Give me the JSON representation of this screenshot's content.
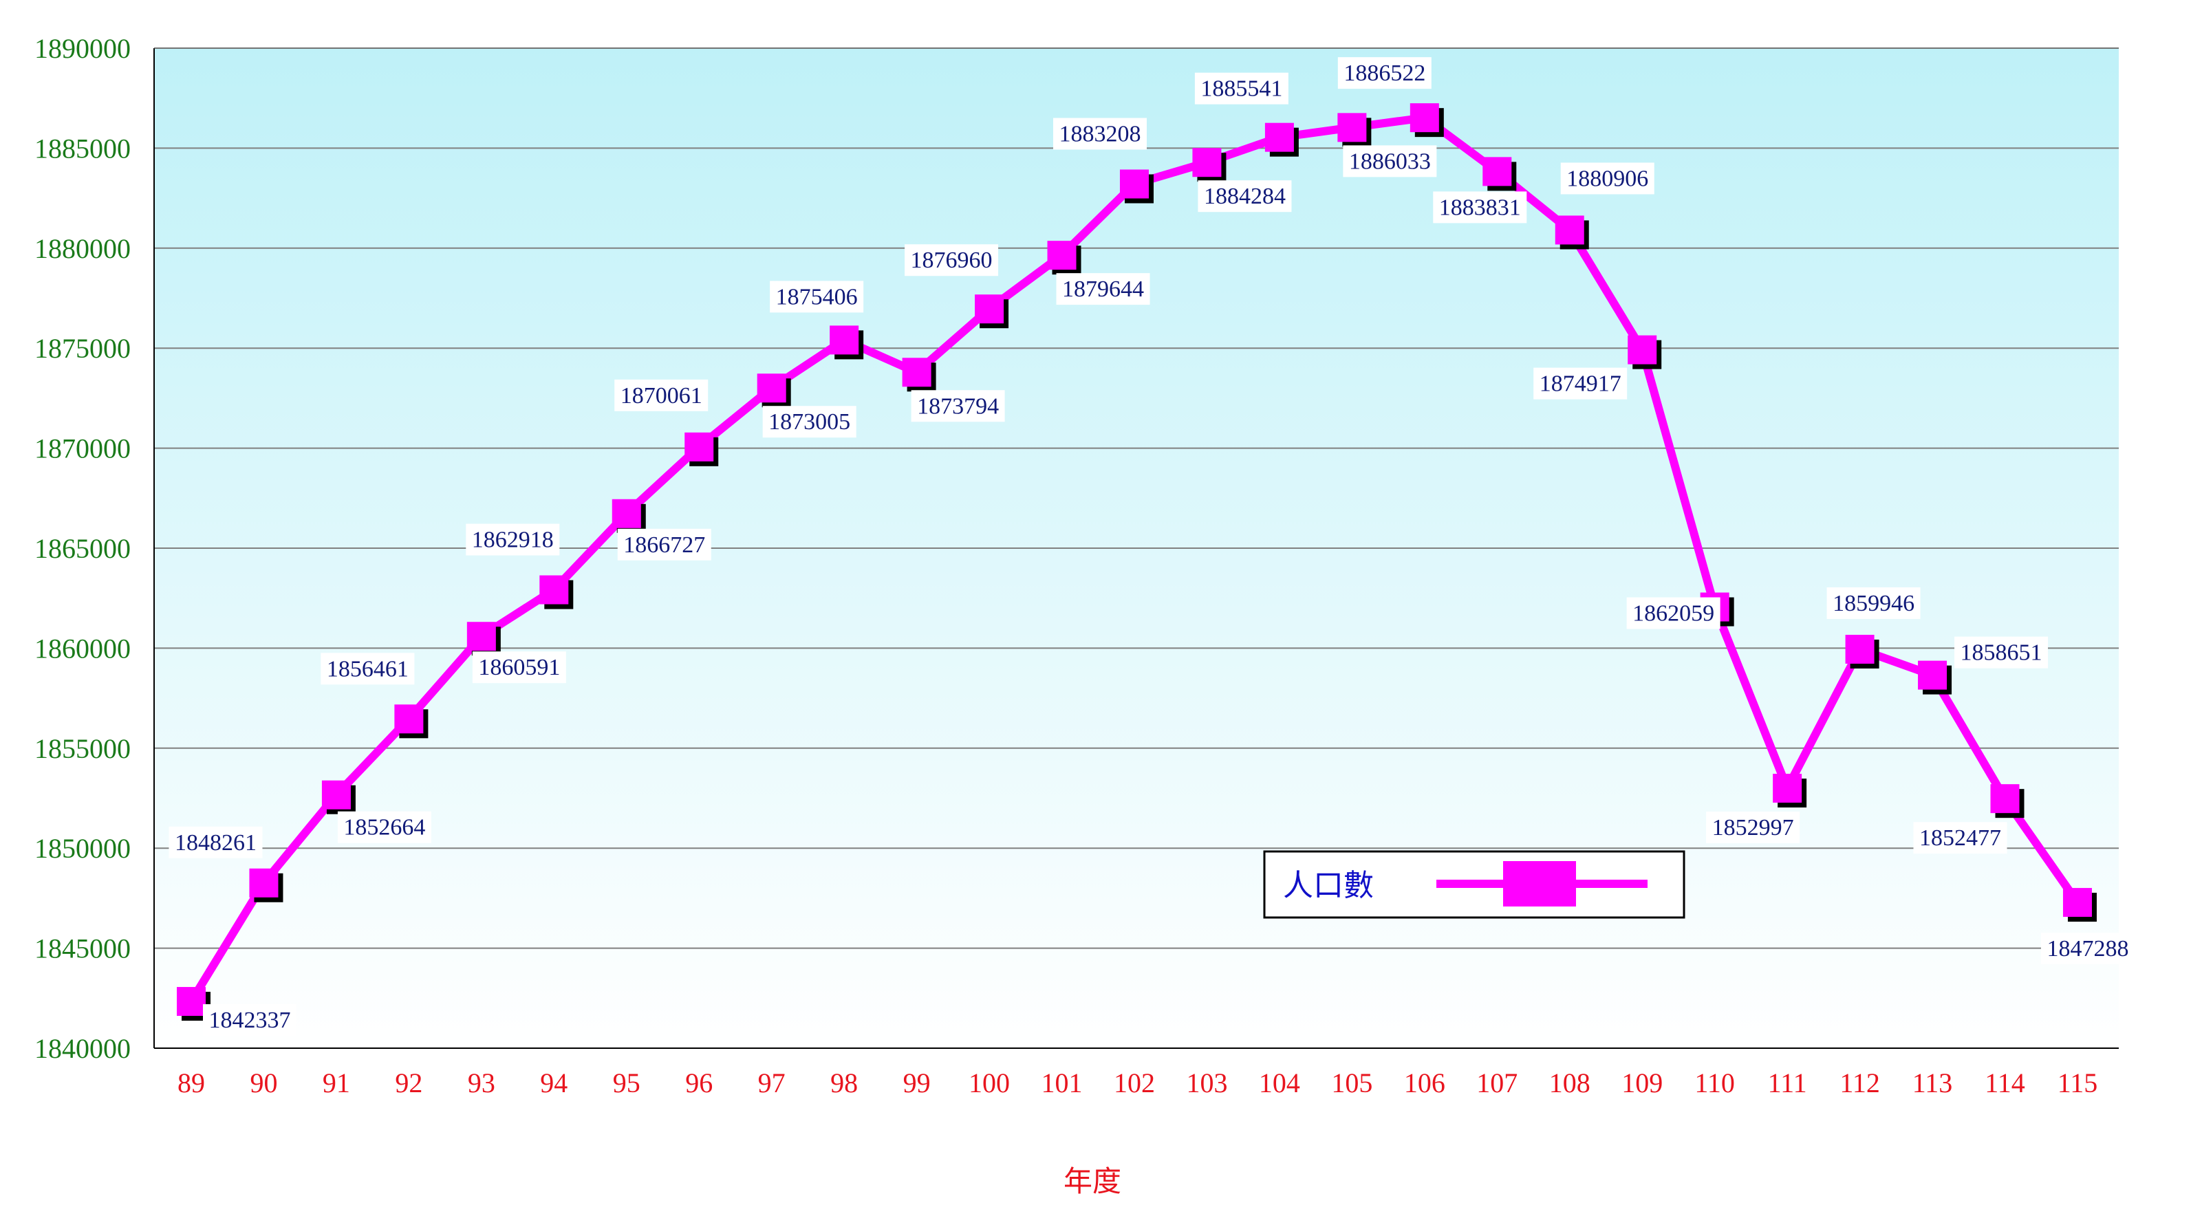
{
  "chart_data": {
    "type": "line",
    "title": "",
    "xlabel": "年度",
    "ylabel": "",
    "categories": [
      "89",
      "90",
      "91",
      "92",
      "93",
      "94",
      "95",
      "96",
      "97",
      "98",
      "99",
      "100",
      "101",
      "102",
      "103",
      "104",
      "105",
      "106",
      "107",
      "108",
      "109",
      "110",
      "111",
      "112",
      "113",
      "114",
      "115"
    ],
    "series": [
      {
        "name": "人口數",
        "values": [
          1842337,
          1848261,
          1852664,
          1856461,
          1860591,
          1862918,
          1866727,
          1870061,
          1873005,
          1875406,
          1873794,
          1876960,
          1879644,
          1883208,
          1884284,
          1885541,
          1886033,
          1886522,
          1883831,
          1880906,
          1874917,
          1862059,
          1852997,
          1859946,
          1858651,
          1852477,
          1847288
        ],
        "labels": [
          "1842337",
          "1848261",
          "1852664",
          "1856461",
          "1860591",
          "1862918",
          "1866727",
          "1870061",
          "1873005",
          "1875406",
          "1873794",
          "1876960",
          "1879644",
          "1883208",
          "1884284",
          "1885541",
          "1886033",
          "1886522",
          "1883831",
          "1880906",
          "1874917",
          "1862059",
          "1852997",
          "1859946",
          "1858651",
          "1852477",
          "1847288"
        ],
        "color": "#ff00ff"
      }
    ],
    "ylim": [
      1840000,
      1890000
    ],
    "yticks": [
      1840000,
      1845000,
      1850000,
      1855000,
      1860000,
      1865000,
      1870000,
      1875000,
      1880000,
      1885000,
      1890000
    ],
    "ytick_labels": [
      "1840000",
      "1845000",
      "1850000",
      "1855000",
      "1860000",
      "1865000",
      "1870000",
      "1875000",
      "1880000",
      "1885000",
      "1890000"
    ],
    "grid": true,
    "legend_position": "bottom-right",
    "colors": {
      "line": "#ff00ff",
      "marker": "#ff00ff",
      "marker_shadow": "#000000",
      "plot_bg_top": "#bff1f8",
      "plot_bg_bottom": "#ffffff",
      "gridline": "#808080",
      "ytick_text": "#1a7a1a",
      "xtick_text": "#e8141e",
      "label_text": "#101a78",
      "legend_text": "#1010c8"
    }
  }
}
